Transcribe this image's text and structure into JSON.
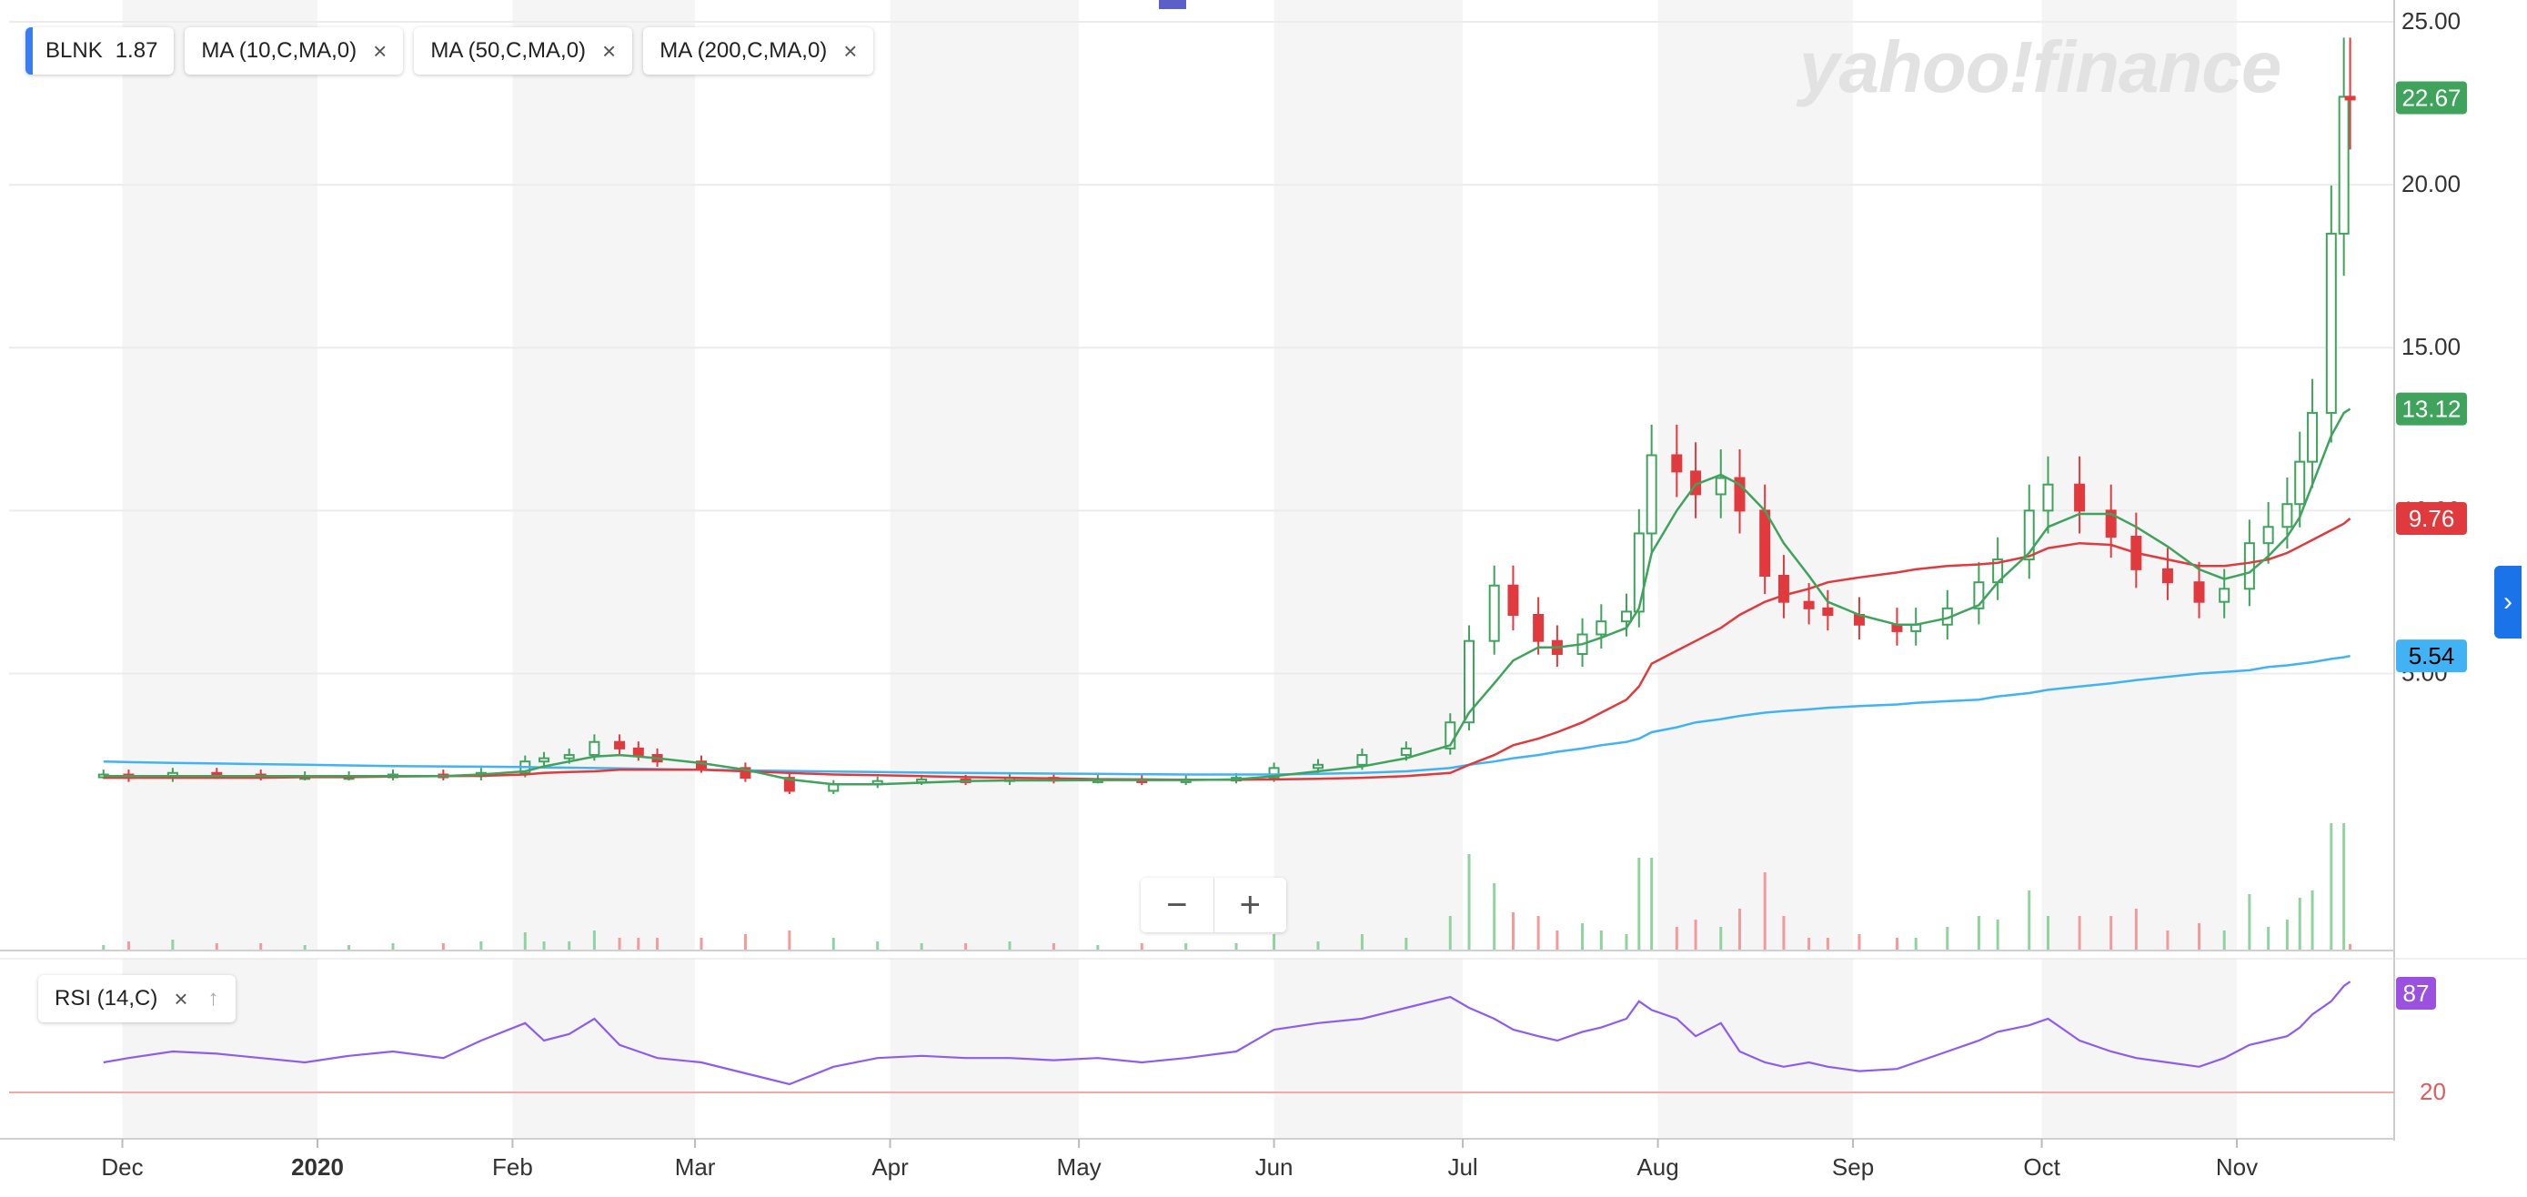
{
  "legend": {
    "symbol": "BLNK",
    "symbol_value": "1.87",
    "indicators": [
      "MA (10,C,MA,0)",
      "MA (50,C,MA,0)",
      "MA (200,C,MA,0)"
    ]
  },
  "rsi_label": "RSI (14,C)",
  "watermark": "yahoo!finance",
  "zoom": {
    "minus": "−",
    "plus": "+"
  },
  "colors": {
    "up": "#3fa35c",
    "down": "#e03a3e",
    "ma10": "#3fa35c",
    "ma50": "#e03a3e",
    "ma200": "#41b3f5",
    "rsi": "#8e5cf0",
    "rsi_badge": "#9b51e0"
  },
  "chart_data": {
    "type": "candlestick",
    "x": [
      "2019-11-28",
      "2019-12-02",
      "2019-12-09",
      "2019-12-16",
      "2019-12-23",
      "2019-12-30",
      "2020-01-06",
      "2020-01-13",
      "2020-01-21",
      "2020-01-27",
      "2020-02-03",
      "2020-02-06",
      "2020-02-10",
      "2020-02-14",
      "2020-02-18",
      "2020-02-21",
      "2020-02-24",
      "2020-03-02",
      "2020-03-09",
      "2020-03-16",
      "2020-03-23",
      "2020-03-30",
      "2020-04-06",
      "2020-04-13",
      "2020-04-20",
      "2020-04-27",
      "2020-05-04",
      "2020-05-11",
      "2020-05-18",
      "2020-05-26",
      "2020-06-01",
      "2020-06-08",
      "2020-06-15",
      "2020-06-22",
      "2020-06-29",
      "2020-07-02",
      "2020-07-06",
      "2020-07-09",
      "2020-07-13",
      "2020-07-16",
      "2020-07-20",
      "2020-07-23",
      "2020-07-27",
      "2020-07-29",
      "2020-07-31",
      "2020-08-04",
      "2020-08-07",
      "2020-08-11",
      "2020-08-14",
      "2020-08-18",
      "2020-08-21",
      "2020-08-25",
      "2020-08-28",
      "2020-09-02",
      "2020-09-08",
      "2020-09-11",
      "2020-09-16",
      "2020-09-21",
      "2020-09-24",
      "2020-09-29",
      "2020-10-02",
      "2020-10-07",
      "2020-10-12",
      "2020-10-16",
      "2020-10-21",
      "2020-10-26",
      "2020-10-30",
      "2020-11-03",
      "2020-11-06",
      "2020-11-09",
      "2020-11-11",
      "2020-11-13",
      "2020-11-16",
      "2020-11-18",
      "2020-11-19"
    ],
    "close": [
      1.9,
      1.8,
      1.95,
      1.9,
      1.85,
      1.85,
      1.85,
      1.9,
      1.85,
      1.95,
      2.3,
      2.4,
      2.5,
      2.9,
      2.7,
      2.5,
      2.3,
      2.1,
      1.8,
      1.4,
      1.6,
      1.7,
      1.75,
      1.7,
      1.8,
      1.75,
      1.75,
      1.7,
      1.75,
      1.8,
      2.1,
      2.2,
      2.5,
      2.7,
      3.5,
      6.0,
      7.7,
      6.8,
      6.0,
      5.6,
      6.2,
      6.6,
      6.9,
      9.3,
      11.7,
      11.2,
      10.5,
      11.0,
      10.0,
      8.0,
      7.2,
      7.0,
      6.8,
      6.5,
      6.3,
      6.5,
      7.0,
      7.8,
      8.5,
      10.0,
      10.8,
      10.0,
      9.2,
      8.2,
      7.8,
      7.2,
      7.6,
      9.0,
      9.5,
      10.2,
      11.5,
      13.0,
      18.5,
      22.7,
      22.67
    ],
    "ma10": [
      1.85,
      1.85,
      1.85,
      1.85,
      1.85,
      1.85,
      1.85,
      1.85,
      1.85,
      1.9,
      2.0,
      2.15,
      2.3,
      2.45,
      2.5,
      2.45,
      2.4,
      2.25,
      2.05,
      1.75,
      1.6,
      1.6,
      1.65,
      1.7,
      1.72,
      1.72,
      1.73,
      1.73,
      1.73,
      1.75,
      1.85,
      2.0,
      2.15,
      2.4,
      2.8,
      3.8,
      4.7,
      5.4,
      5.8,
      5.8,
      5.9,
      6.1,
      6.4,
      7.0,
      8.7,
      10.0,
      10.8,
      11.1,
      10.8,
      10.0,
      9.0,
      8.0,
      7.2,
      6.8,
      6.5,
      6.5,
      6.7,
      7.1,
      7.8,
      8.7,
      9.5,
      9.9,
      9.9,
      9.5,
      8.9,
      8.2,
      7.9,
      8.1,
      8.6,
      9.2,
      9.8,
      10.8,
      12.3,
      13.0,
      13.12
    ],
    "ma50": [
      1.8,
      1.8,
      1.8,
      1.8,
      1.8,
      1.82,
      1.82,
      1.84,
      1.85,
      1.86,
      1.9,
      1.95,
      1.98,
      2.0,
      2.05,
      2.05,
      2.05,
      2.05,
      2.0,
      1.95,
      1.9,
      1.88,
      1.85,
      1.82,
      1.8,
      1.78,
      1.76,
      1.75,
      1.74,
      1.74,
      1.75,
      1.77,
      1.8,
      1.85,
      1.95,
      2.2,
      2.5,
      2.8,
      3.0,
      3.2,
      3.5,
      3.8,
      4.2,
      4.6,
      5.3,
      5.7,
      6.0,
      6.4,
      6.8,
      7.2,
      7.4,
      7.6,
      7.8,
      7.95,
      8.1,
      8.2,
      8.3,
      8.35,
      8.4,
      8.6,
      8.85,
      9.0,
      8.95,
      8.7,
      8.5,
      8.3,
      8.3,
      8.4,
      8.5,
      8.7,
      8.9,
      9.1,
      9.4,
      9.6,
      9.76
    ],
    "ma200": [
      2.3,
      2.28,
      2.26,
      2.24,
      2.22,
      2.2,
      2.18,
      2.16,
      2.15,
      2.14,
      2.13,
      2.12,
      2.11,
      2.1,
      2.09,
      2.08,
      2.07,
      2.05,
      2.03,
      2.01,
      1.99,
      1.98,
      1.96,
      1.95,
      1.94,
      1.93,
      1.92,
      1.91,
      1.9,
      1.9,
      1.9,
      1.92,
      1.95,
      2.0,
      2.1,
      2.2,
      2.3,
      2.4,
      2.5,
      2.6,
      2.7,
      2.8,
      2.9,
      3.0,
      3.2,
      3.35,
      3.5,
      3.6,
      3.7,
      3.8,
      3.85,
      3.9,
      3.95,
      4.0,
      4.05,
      4.1,
      4.15,
      4.2,
      4.3,
      4.4,
      4.5,
      4.6,
      4.7,
      4.8,
      4.9,
      5.0,
      5.05,
      5.1,
      5.2,
      5.25,
      5.3,
      5.35,
      5.45,
      5.5,
      5.54
    ],
    "rsi": [
      50,
      52,
      55,
      54,
      52,
      50,
      53,
      55,
      52,
      60,
      68,
      60,
      63,
      70,
      58,
      55,
      52,
      50,
      45,
      40,
      48,
      52,
      53,
      52,
      52,
      51,
      52,
      50,
      52,
      55,
      65,
      68,
      70,
      75,
      80,
      75,
      70,
      65,
      62,
      60,
      64,
      66,
      70,
      78,
      74,
      70,
      62,
      68,
      55,
      50,
      48,
      50,
      48,
      46,
      47,
      50,
      55,
      60,
      64,
      67,
      70,
      60,
      55,
      52,
      50,
      48,
      52,
      58,
      60,
      62,
      66,
      72,
      78,
      85,
      87
    ],
    "y_ticks": [
      "25.00",
      "20.00",
      "15.00",
      "10.00",
      "5.00"
    ],
    "x_ticks": [
      "Dec",
      "2020",
      "Feb",
      "Mar",
      "Apr",
      "May",
      "Jun",
      "Jul",
      "Aug",
      "Sep",
      "Oct",
      "Nov"
    ],
    "price_badges": {
      "close": "22.67",
      "ma10": "13.12",
      "ma50": "9.76",
      "ma200": "5.54"
    },
    "rsi_ticks": [
      "20"
    ],
    "rsi_badge": "87",
    "ylim": [
      0,
      25
    ],
    "grid": true
  }
}
